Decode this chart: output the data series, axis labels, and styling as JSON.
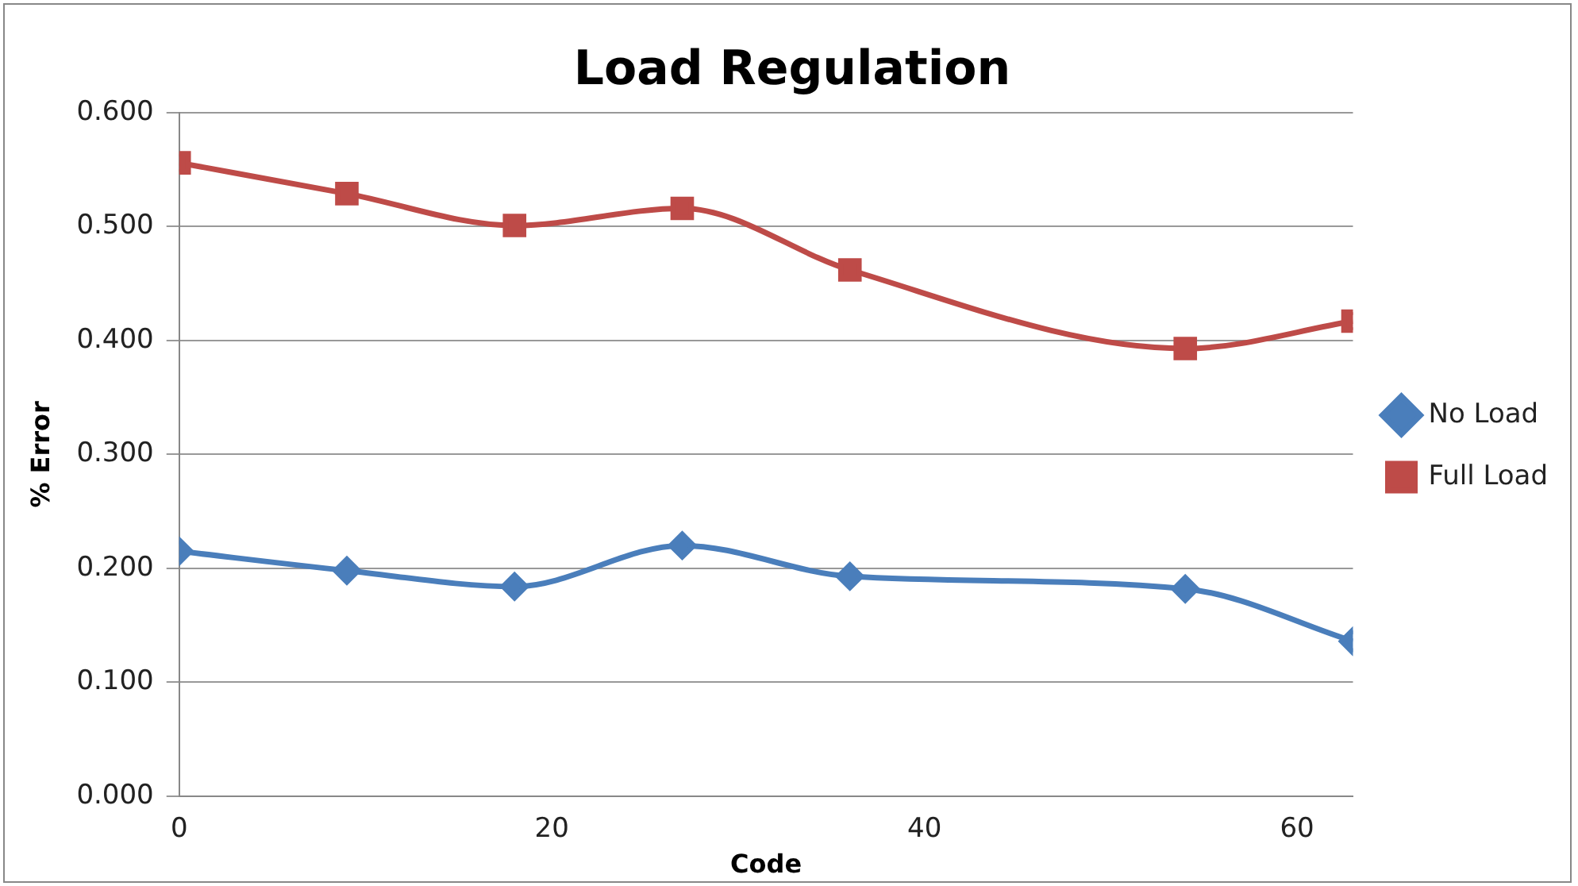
{
  "chart_data": {
    "type": "line",
    "title": "Load Regulation",
    "xlabel": "Code",
    "ylabel": "% Error",
    "x": [
      0,
      9,
      18,
      27,
      36,
      54,
      63
    ],
    "series": [
      {
        "name": "No Load",
        "color": "#4a7ebb",
        "marker": "diamond",
        "values": [
          0.215,
          0.198,
          0.184,
          0.22,
          0.193,
          0.182,
          0.136
        ]
      },
      {
        "name": "Full Load",
        "color": "#be4b48",
        "marker": "square",
        "values": [
          0.556,
          0.529,
          0.501,
          0.516,
          0.462,
          0.393,
          0.417
        ]
      }
    ],
    "xlim": [
      0,
      63
    ],
    "xticks": [
      0,
      20,
      40,
      60
    ],
    "ylim": [
      0,
      0.6
    ],
    "yticks": [
      {
        "value": 0,
        "label": "0.000"
      },
      {
        "value": 0.1,
        "label": "0.100"
      },
      {
        "value": 0.2,
        "label": "0.200"
      },
      {
        "value": 0.3,
        "label": "0.300"
      },
      {
        "value": 0.4,
        "label": "0.400"
      },
      {
        "value": 0.5,
        "label": "0.500"
      },
      {
        "value": 0.6,
        "label": "0.600"
      }
    ],
    "grid": "y",
    "legend": "right"
  }
}
